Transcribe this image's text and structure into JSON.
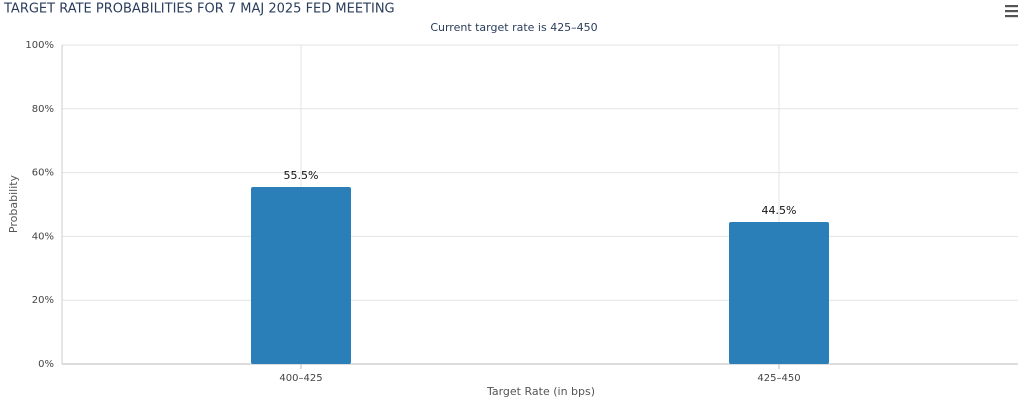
{
  "chart_data": {
    "type": "bar",
    "title": "TARGET RATE PROBABILITIES FOR 7 MAJ 2025 FED MEETING",
    "subtitle": "Current target rate is 425–450",
    "x_label": "Target Rate (in bps)",
    "y_label": "Probability",
    "categories": [
      "400–425",
      "425–450"
    ],
    "values": [
      55.5,
      44.5
    ],
    "value_labels": [
      "55.5%",
      "44.5%"
    ],
    "color": "#2a7fb8",
    "ylim": [
      0,
      100
    ],
    "yticks": [
      {
        "value": 0,
        "label": "0%"
      },
      {
        "value": 20,
        "label": "20%"
      },
      {
        "value": 40,
        "label": "40%"
      },
      {
        "value": 60,
        "label": "60%"
      },
      {
        "value": 80,
        "label": "80%"
      },
      {
        "value": 100,
        "label": "100%"
      }
    ],
    "grid": true
  }
}
